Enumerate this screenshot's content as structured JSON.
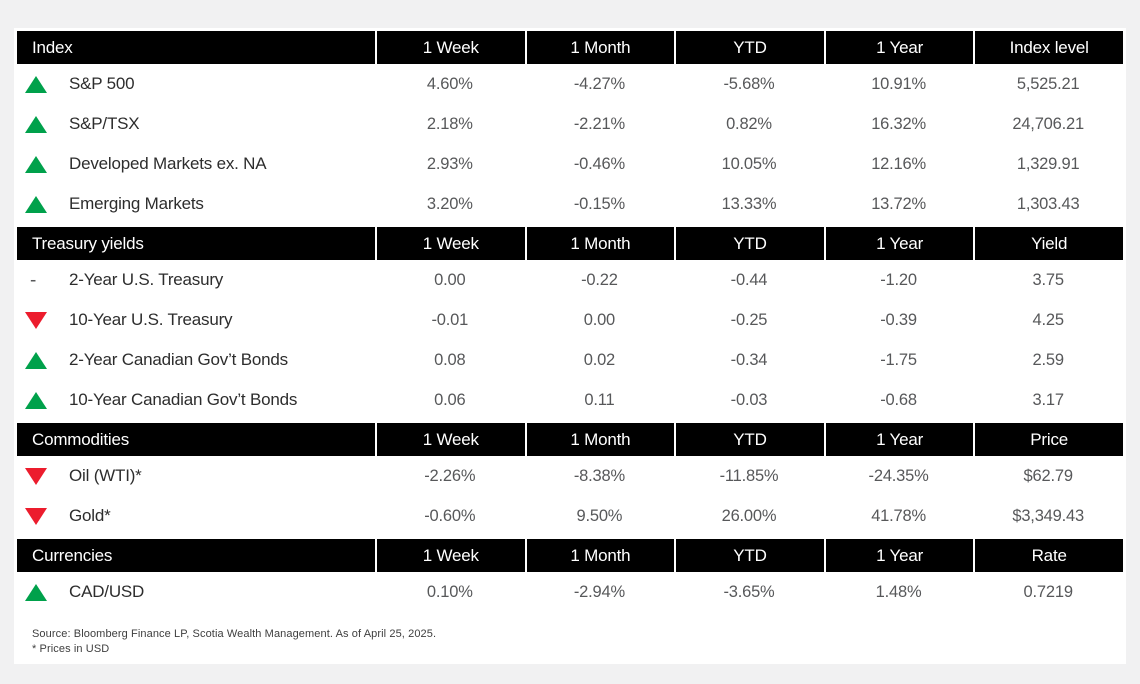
{
  "colors": {
    "page_background": "#f1f1f2",
    "card_background": "#ffffff",
    "header_background": "#000000",
    "header_text": "#ffffff",
    "up_green": "#00a14b",
    "down_red": "#ec1c2d",
    "label_text": "#2d2d2d",
    "value_text": "#57585a"
  },
  "footer": {
    "line1": "Source: Bloomberg Finance LP, Scotia Wealth Management. As of April 25, 2025.",
    "line2": "* Prices in USD"
  },
  "chart_data": {
    "type": "table",
    "sections": [
      {
        "title": "Index",
        "columns": [
          "1 Week",
          "1 Month",
          "YTD",
          "1 Year",
          "Index level"
        ],
        "rows": [
          {
            "direction": "up",
            "label": "S&P 500",
            "values": [
              "4.60%",
              "-4.27%",
              "-5.68%",
              "10.91%",
              "5,525.21"
            ]
          },
          {
            "direction": "up",
            "label": "S&P/TSX",
            "values": [
              "2.18%",
              "-2.21%",
              "0.82%",
              "16.32%",
              "24,706.21"
            ]
          },
          {
            "direction": "up",
            "label": "Developed Markets ex. NA",
            "values": [
              "2.93%",
              "-0.46%",
              "10.05%",
              "12.16%",
              "1,329.91"
            ]
          },
          {
            "direction": "up",
            "label": "Emerging Markets",
            "values": [
              "3.20%",
              "-0.15%",
              "13.33%",
              "13.72%",
              "1,303.43"
            ]
          }
        ]
      },
      {
        "title": "Treasury yields",
        "columns": [
          "1 Week",
          "1 Month",
          "YTD",
          "1 Year",
          "Yield"
        ],
        "rows": [
          {
            "direction": "flat",
            "label": "2-Year U.S. Treasury",
            "values": [
              "0.00",
              "-0.22",
              "-0.44",
              "-1.20",
              "3.75"
            ]
          },
          {
            "direction": "down",
            "label": "10-Year U.S. Treasury",
            "values": [
              "-0.01",
              "0.00",
              "-0.25",
              "-0.39",
              "4.25"
            ]
          },
          {
            "direction": "up",
            "label": "2-Year Canadian Gov’t Bonds",
            "values": [
              "0.08",
              "0.02",
              "-0.34",
              "-1.75",
              "2.59"
            ]
          },
          {
            "direction": "up",
            "label": "10-Year Canadian Gov’t Bonds",
            "values": [
              "0.06",
              "0.11",
              "-0.03",
              "-0.68",
              "3.17"
            ]
          }
        ]
      },
      {
        "title": "Commodities",
        "columns": [
          "1 Week",
          "1 Month",
          "YTD",
          "1 Year",
          "Price"
        ],
        "rows": [
          {
            "direction": "down",
            "label": "Oil (WTI)*",
            "values": [
              "-2.26%",
              "-8.38%",
              "-11.85%",
              "-24.35%",
              "$62.79"
            ]
          },
          {
            "direction": "down",
            "label": "Gold*",
            "values": [
              "-0.60%",
              "9.50%",
              "26.00%",
              "41.78%",
              "$3,349.43"
            ]
          }
        ]
      },
      {
        "title": "Currencies",
        "columns": [
          "1 Week",
          "1 Month",
          "YTD",
          "1 Year",
          "Rate"
        ],
        "rows": [
          {
            "direction": "up",
            "label": "CAD/USD",
            "values": [
              "0.10%",
              "-2.94%",
              "-3.65%",
              "1.48%",
              "0.7219"
            ]
          }
        ]
      }
    ]
  }
}
